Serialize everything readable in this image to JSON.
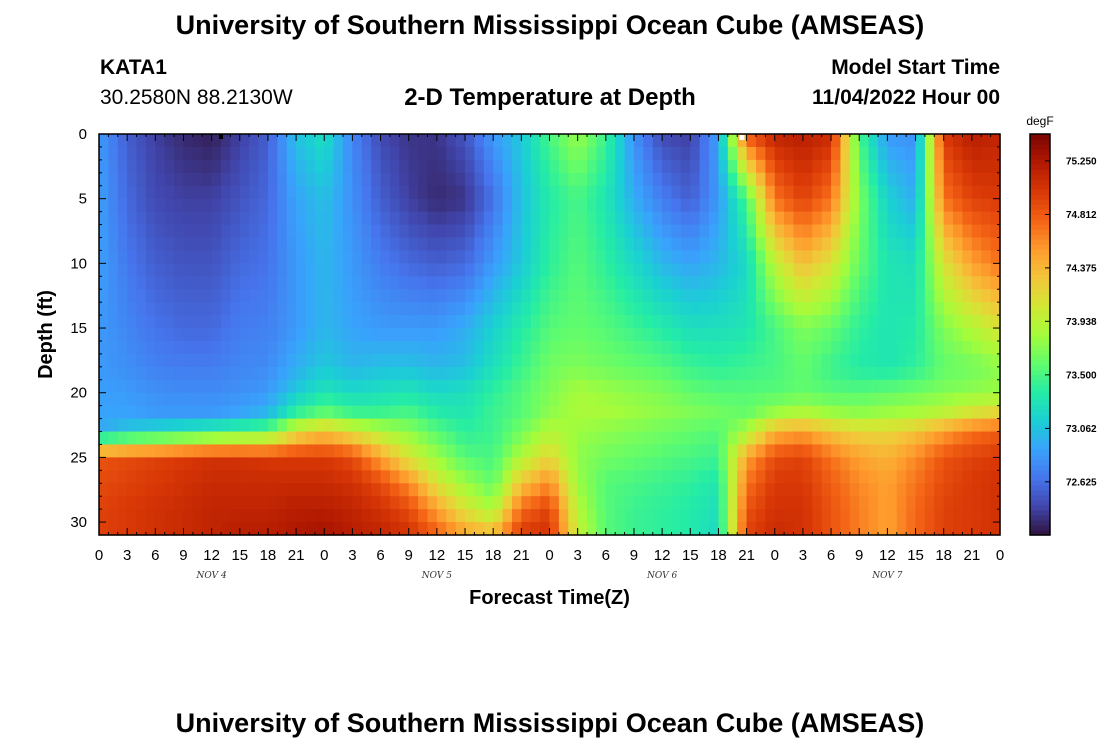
{
  "header": {
    "title": "University of Southern Mississippi Ocean Cube (AMSEAS)",
    "station": "KATA1",
    "coords": "30.2580N  88.2130W",
    "subtitle": "2-D Temperature at Depth",
    "model_start_label": "Model Start Time",
    "model_start_value": "11/04/2022 Hour 00"
  },
  "footer": {
    "title": "University of Southern Mississippi Ocean Cube (AMSEAS)"
  },
  "chart_data": {
    "type": "heatmap",
    "title": "2-D Temperature at Depth",
    "xlabel": "Forecast Time(Z)",
    "ylabel": "Depth (ft)",
    "x_tick_labels": [
      "0",
      "3",
      "6",
      "9",
      "12",
      "15",
      "18",
      "21",
      "0",
      "3",
      "6",
      "9",
      "12",
      "15",
      "18",
      "21",
      "0",
      "3",
      "6",
      "9",
      "12",
      "15",
      "18",
      "21",
      "0",
      "3",
      "6",
      "9",
      "12",
      "15",
      "18",
      "21",
      "0"
    ],
    "x_range_hours": [
      0,
      96
    ],
    "date_labels": [
      {
        "label": "NOV 4",
        "hour": 12
      },
      {
        "label": "NOV 5",
        "hour": 36
      },
      {
        "label": "NOV 6",
        "hour": 60
      },
      {
        "label": "NOV 7",
        "hour": 84
      }
    ],
    "y_ticks": [
      0,
      5,
      10,
      15,
      20,
      25,
      30
    ],
    "ylim": [
      0,
      31
    ],
    "y_inverted": true,
    "colorbar": {
      "unit": "degF",
      "range": [
        72.19,
        75.47
      ],
      "tick_values": [
        75.25,
        74.812,
        74.375,
        73.938,
        73.5,
        73.062,
        72.625
      ],
      "tick_labels": [
        "75.250",
        "74.812",
        "74.375",
        "73.938",
        "73.500",
        "73.062",
        "72.625"
      ],
      "colormap": [
        "#30123b",
        "#4145ab",
        "#4675ed",
        "#39a2fc",
        "#1bcfd4",
        "#24eca6",
        "#61fc6c",
        "#a4fc3b",
        "#d1e834",
        "#f3c63a",
        "#fe9b2d",
        "#f36315",
        "#d93806",
        "#b11901",
        "#7a0403"
      ]
    },
    "field_times_hours": [
      0,
      3,
      6,
      9,
      12,
      15,
      18,
      21,
      24,
      27,
      30,
      33,
      36,
      39,
      42,
      45,
      48,
      51,
      54,
      57,
      60,
      63,
      66,
      69,
      72,
      75,
      78,
      81,
      84,
      87,
      90,
      93,
      96
    ],
    "field_depths_ft": [
      0,
      5,
      10,
      15,
      18,
      20,
      21.5,
      23,
      25,
      27,
      29,
      31
    ],
    "temperature_degF": [
      [
        72.85,
        72.88,
        72.88,
        72.85,
        72.85,
        72.88,
        72.9,
        72.92,
        74.85,
        74.9,
        74.95,
        74.95
      ],
      [
        72.55,
        72.6,
        72.68,
        72.75,
        72.8,
        72.85,
        72.9,
        73.1,
        74.9,
        74.95,
        75.0,
        75.0
      ],
      [
        72.4,
        72.45,
        72.55,
        72.65,
        72.72,
        72.8,
        72.85,
        73.2,
        74.95,
        75.0,
        75.05,
        75.05
      ],
      [
        72.3,
        72.4,
        72.5,
        72.6,
        72.7,
        72.78,
        72.85,
        73.3,
        75.0,
        75.05,
        75.1,
        75.1
      ],
      [
        72.25,
        72.4,
        72.5,
        72.6,
        72.7,
        72.78,
        72.85,
        73.4,
        75.05,
        75.1,
        75.15,
        75.15
      ],
      [
        72.4,
        72.5,
        72.6,
        72.7,
        72.75,
        72.8,
        72.9,
        73.5,
        75.05,
        75.1,
        75.15,
        75.2
      ],
      [
        72.55,
        72.6,
        72.65,
        72.72,
        72.78,
        72.85,
        73.0,
        73.6,
        75.0,
        75.1,
        75.15,
        75.2
      ],
      [
        73.05,
        72.9,
        72.85,
        72.85,
        72.95,
        73.1,
        73.4,
        74.1,
        75.0,
        75.1,
        75.2,
        75.25
      ],
      [
        73.25,
        73.05,
        73.0,
        73.0,
        73.1,
        73.3,
        73.6,
        74.3,
        75.0,
        75.1,
        75.2,
        75.3
      ],
      [
        72.75,
        72.8,
        72.85,
        72.9,
        73.0,
        73.2,
        73.45,
        74.1,
        74.9,
        75.05,
        75.15,
        75.2
      ],
      [
        72.45,
        72.55,
        72.7,
        72.85,
        73.05,
        73.25,
        73.45,
        73.9,
        74.5,
        74.9,
        75.05,
        75.15
      ],
      [
        72.35,
        72.4,
        72.6,
        72.85,
        73.05,
        73.3,
        73.5,
        73.75,
        74.1,
        74.6,
        74.9,
        75.05
      ],
      [
        72.35,
        72.3,
        72.55,
        72.85,
        73.0,
        73.2,
        73.35,
        73.55,
        73.8,
        74.1,
        74.5,
        74.8
      ],
      [
        72.5,
        72.35,
        72.6,
        72.95,
        73.05,
        73.25,
        73.3,
        73.4,
        73.55,
        73.8,
        74.1,
        74.5
      ],
      [
        72.85,
        72.65,
        72.85,
        73.15,
        73.25,
        73.4,
        73.45,
        73.45,
        73.5,
        73.6,
        73.85,
        74.4
      ],
      [
        73.1,
        73.05,
        73.1,
        73.35,
        73.45,
        73.55,
        73.55,
        73.65,
        73.9,
        74.3,
        74.75,
        75.0
      ],
      [
        73.5,
        73.35,
        73.4,
        73.55,
        73.65,
        73.7,
        73.75,
        73.9,
        74.2,
        74.6,
        74.95,
        75.05
      ],
      [
        73.8,
        73.5,
        73.55,
        73.6,
        73.7,
        73.85,
        73.85,
        73.8,
        73.75,
        73.8,
        73.9,
        74.0
      ],
      [
        73.45,
        73.3,
        73.4,
        73.55,
        73.65,
        73.8,
        73.85,
        73.75,
        73.65,
        73.55,
        73.55,
        73.55
      ],
      [
        72.8,
        72.95,
        73.2,
        73.45,
        73.6,
        73.75,
        73.8,
        73.7,
        73.6,
        73.5,
        73.45,
        73.45
      ],
      [
        72.45,
        72.7,
        73.0,
        73.35,
        73.55,
        73.7,
        73.75,
        73.65,
        73.55,
        73.45,
        73.4,
        73.4
      ],
      [
        72.4,
        72.55,
        72.9,
        73.25,
        73.45,
        73.6,
        73.7,
        73.6,
        73.5,
        73.4,
        73.35,
        73.35
      ],
      [
        72.9,
        72.85,
        73.0,
        73.25,
        73.4,
        73.55,
        73.65,
        73.55,
        73.45,
        73.3,
        73.25,
        73.2
      ],
      [
        74.85,
        73.5,
        73.2,
        73.3,
        73.45,
        73.55,
        73.6,
        73.85,
        74.5,
        74.7,
        74.85,
        74.95
      ],
      [
        75.15,
        74.7,
        73.95,
        73.5,
        73.5,
        73.55,
        73.8,
        74.4,
        74.9,
        75.0,
        75.05,
        75.1
      ],
      [
        75.2,
        74.95,
        74.35,
        73.7,
        73.6,
        73.6,
        73.9,
        74.5,
        74.95,
        75.0,
        75.05,
        75.05
      ],
      [
        75.1,
        74.7,
        74.1,
        73.6,
        73.45,
        73.55,
        73.8,
        74.3,
        74.7,
        74.8,
        74.85,
        74.85
      ],
      [
        73.5,
        73.7,
        73.6,
        73.4,
        73.35,
        73.55,
        73.75,
        74.2,
        74.5,
        74.6,
        74.65,
        74.65
      ],
      [
        72.85,
        73.15,
        73.3,
        73.3,
        73.3,
        73.6,
        73.8,
        74.2,
        74.4,
        74.5,
        74.5,
        74.5
      ],
      [
        72.8,
        72.95,
        73.25,
        73.35,
        73.4,
        73.65,
        73.85,
        74.3,
        74.6,
        74.7,
        74.75,
        74.75
      ],
      [
        75.0,
        74.7,
        74.1,
        73.7,
        73.6,
        73.7,
        73.95,
        74.5,
        74.85,
        74.9,
        74.95,
        74.95
      ],
      [
        75.2,
        74.95,
        74.5,
        73.9,
        73.65,
        73.75,
        74.1,
        74.7,
        74.95,
        75.0,
        75.0,
        75.0
      ],
      [
        75.15,
        75.0,
        74.7,
        74.1,
        73.75,
        73.8,
        74.2,
        74.8,
        75.0,
        75.05,
        75.05,
        75.05
      ]
    ]
  }
}
